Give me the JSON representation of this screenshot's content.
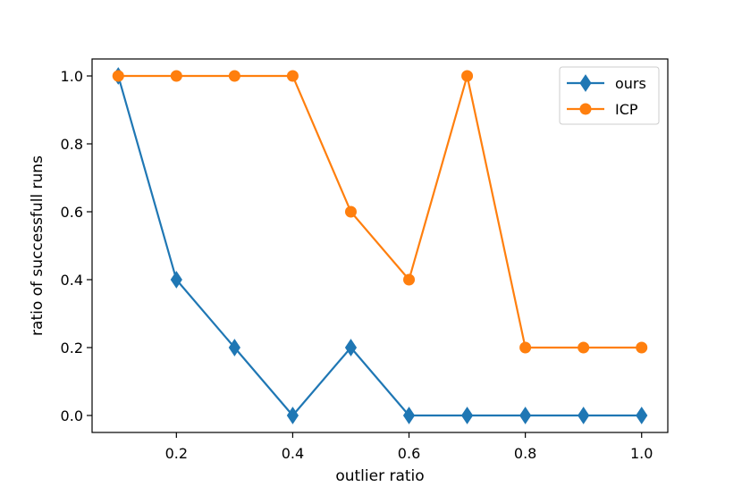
{
  "chart_data": {
    "type": "line",
    "title": "",
    "xlabel": "outlier ratio",
    "ylabel": "ratio of successfull runs",
    "x": [
      0.1,
      0.2,
      0.3,
      0.4,
      0.5,
      0.6,
      0.7,
      0.8,
      0.9,
      1.0
    ],
    "series": [
      {
        "name": "ours",
        "color": "#1f77b4",
        "marker": "diamond",
        "values": [
          1.0,
          0.4,
          0.2,
          0.0,
          0.2,
          0.0,
          0.0,
          0.0,
          0.0,
          0.0
        ]
      },
      {
        "name": "ICP",
        "color": "#ff7f0e",
        "marker": "circle",
        "values": [
          1.0,
          1.0,
          1.0,
          1.0,
          0.6,
          0.4,
          1.0,
          0.2,
          0.2,
          0.2
        ]
      }
    ],
    "xlim": [
      0.055,
      1.045
    ],
    "ylim": [
      -0.05,
      1.05
    ],
    "xticks": [
      0.2,
      0.4,
      0.6,
      0.8,
      1.0
    ],
    "xtick_labels": [
      "0.2",
      "0.4",
      "0.6",
      "0.8",
      "1.0"
    ],
    "yticks": [
      0.0,
      0.2,
      0.4,
      0.6,
      0.8,
      1.0
    ],
    "ytick_labels": [
      "0.0",
      "0.2",
      "0.4",
      "0.6",
      "0.8",
      "1.0"
    ],
    "grid": false,
    "legend_position": "top-right"
  }
}
